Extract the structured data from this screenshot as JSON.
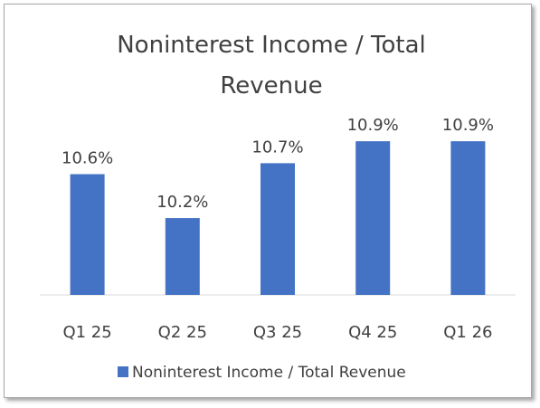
{
  "chart_data": {
    "type": "bar",
    "title": "Noninterest Income / Total Revenue",
    "categories": [
      "Q1 25",
      "Q2 25",
      "Q3 25",
      "Q4 25",
      "Q1 26"
    ],
    "series": [
      {
        "name": "Noninterest Income / Total Revenue",
        "color": "#4472c4",
        "values": [
          10.6,
          10.2,
          10.7,
          10.9,
          10.9
        ],
        "value_labels": [
          "10.6%",
          "10.2%",
          "10.7%",
          "10.9%",
          "10.9%"
        ]
      }
    ],
    "ylim": [
      9.5,
      11.0
    ],
    "legend": "bottom"
  }
}
